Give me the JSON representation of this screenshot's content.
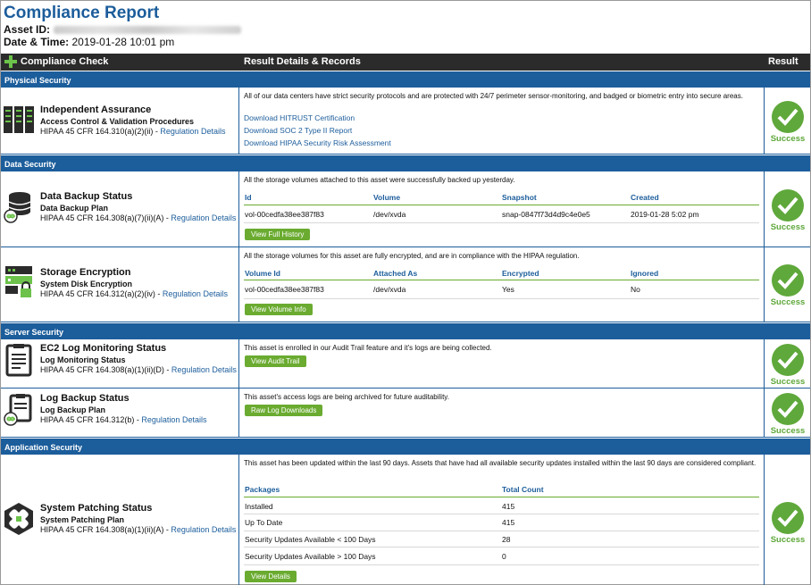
{
  "header": {
    "title": "Compliance Report",
    "asset_label": "Asset ID:",
    "datetime_label": "Date & Time:",
    "datetime_value": "2019-01-28 10:01 pm"
  },
  "table_header": {
    "col1": "Compliance Check",
    "col2": "Result Details & Records",
    "col3": "Result"
  },
  "sections": {
    "physical": "Physical Security",
    "data": "Data Security",
    "server": "Server Security",
    "application": "Application Security"
  },
  "regulation_link": "Regulation Details",
  "result_text": "Success",
  "checks": {
    "independent": {
      "title": "Independent Assurance",
      "subtitle": "Access Control & Validation Procedures",
      "regulation": "HIPAA 45 CFR 164.310(a)(2)(ii) -",
      "description": "All of our data centers have strict security protocols and are protected with 24/7 perimeter sensor-monitoring, and badged or biometric entry into secure areas.",
      "links": [
        "Download HITRUST Certification",
        "Download SOC 2 Type II Report",
        "Download HIPAA Security Risk Assessment"
      ]
    },
    "backup": {
      "title": "Data Backup Status",
      "subtitle": "Data Backup Plan",
      "regulation": "HIPAA 45 CFR 164.308(a)(7)(ii)(A) -",
      "description": "All the storage volumes attached to this asset were successfully backed up yesterday.",
      "headers": [
        "Id",
        "Volume",
        "Snapshot",
        "Created"
      ],
      "row": [
        "vol-00cedfa38ee387f83",
        "/dev/xvda",
        "snap-0847f73d4d9c4e0e5",
        "2019-01-28 5:02 pm"
      ],
      "button": "View Full History"
    },
    "encryption": {
      "title": "Storage Encryption",
      "subtitle": "System Disk Encryption",
      "regulation": "HIPAA 45 CFR 164.312(a)(2)(iv) -",
      "description": "All the storage volumes for this asset are fully encrypted, and are in compliance with the HIPAA regulation.",
      "headers": [
        "Volume Id",
        "Attached As",
        "Encrypted",
        "Ignored"
      ],
      "row": [
        "vol-00cedfa38ee387f83",
        "/dev/xvda",
        "Yes",
        "No"
      ],
      "button": "View Volume Info"
    },
    "logmon": {
      "title": "EC2 Log Monitoring Status",
      "subtitle": "Log Monitoring Status",
      "regulation": "HIPAA 45 CFR 164.308(a)(1)(ii)(D) -",
      "description": "This asset is enrolled in our Audit Trail feature and it's logs are being collected.",
      "button": "View Audit Trail"
    },
    "logbackup": {
      "title": "Log Backup Status",
      "subtitle": "Log Backup Plan",
      "regulation": "HIPAA 45 CFR 164.312(b) -",
      "description": "This asset's access logs are being archived for future auditability.",
      "button": "Raw Log Downloads"
    },
    "patching": {
      "title": "System Patching Status",
      "subtitle": "System Patching Plan",
      "regulation": "HIPAA 45 CFR 164.308(a)(1)(ii)(A) -",
      "description": "This asset has been updated within the last 90 days. Assets that have had all available security updates installed within the last 90 days are considered compliant.",
      "headers": [
        "Packages",
        "Total Count"
      ],
      "rows": [
        [
          "Installed",
          "415"
        ],
        [
          "Up To Date",
          "415"
        ],
        [
          "Security Updates Available < 100 Days",
          "28"
        ],
        [
          "Security Updates Available > 100 Days",
          "0"
        ]
      ],
      "button": "View Details"
    }
  }
}
